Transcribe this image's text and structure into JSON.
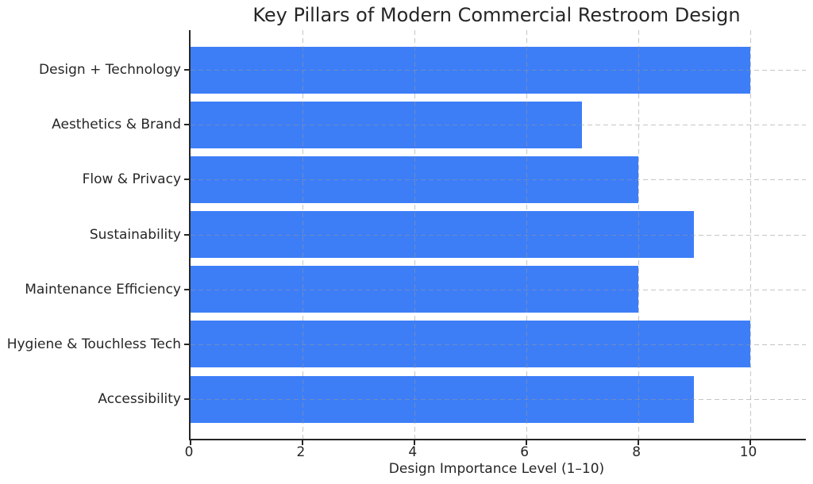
{
  "chart_data": {
    "type": "bar",
    "orientation": "horizontal",
    "title": "Key Pillars of Modern Commercial Restroom Design",
    "categories": [
      "Design + Technology",
      "Aesthetics & Brand",
      "Flow & Privacy",
      "Sustainability",
      "Maintenance Efficiency",
      "Hygiene & Touchless Tech",
      "Accessibility"
    ],
    "values": [
      10,
      7,
      8,
      9,
      8,
      10,
      9
    ],
    "xlabel": "Design Importance Level (1–10)",
    "ylabel": "",
    "xlim": [
      0,
      11
    ],
    "xticks": [
      0,
      2,
      4,
      6,
      8,
      10
    ],
    "grid": true,
    "grid_style": "dashed",
    "grid_over_bars": true,
    "legend": null,
    "colors": {
      "bar": "#3d7ef7",
      "grid": "#c9c9c9",
      "spine": "#262626",
      "text": "#262626",
      "background": "#ffffff"
    }
  }
}
